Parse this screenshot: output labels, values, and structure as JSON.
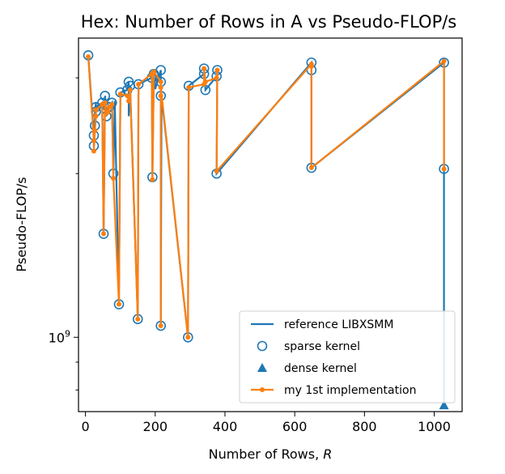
{
  "chart_data": {
    "type": "line",
    "title": "Hex: Number of Rows in A vs Pseudo-FLOP/s",
    "xlabel": "Number of Rows, ",
    "xlabel_var": "R",
    "ylabel": "Pseudo-FLOP/s",
    "y_scale": "log",
    "xlim": [
      -20,
      1080
    ],
    "ylim": [
      730000000,
      3550000000
    ],
    "x_ticks": [
      0,
      200,
      400,
      600,
      800,
      1000
    ],
    "y_tick_label": {
      "base": "10",
      "exp": "9",
      "value": 1000000000
    },
    "grid": false,
    "legend_position": "lower-right",
    "colors": {
      "reference": "#1f77b4",
      "implementation": "#ff7f0e"
    },
    "series": [
      {
        "name": "reference LIBXSMM",
        "kind": "line",
        "x": [
          8,
          24,
          24,
          27,
          27,
          30,
          30,
          48,
          52,
          56,
          60,
          64,
          68,
          76,
          80,
          84,
          96,
          100,
          120,
          124,
          124,
          128,
          150,
          152,
          190,
          192,
          196,
          200,
          216,
          216,
          216,
          216,
          218,
          294,
          296,
          340,
          340,
          344,
          376,
          378,
          376,
          648,
          648,
          648,
          1028,
          1028,
          1028
        ],
        "y": [
          3300000000,
          2350000000,
          2250000000,
          2450000000,
          2600000000,
          2700000000,
          2650000000,
          2700000000,
          1550000000,
          2780000000,
          2550000000,
          2650000000,
          2650000000,
          2700000000,
          2000000000,
          2720000000,
          1150000000,
          2820000000,
          2850000000,
          2950000000,
          2550000000,
          2900000000,
          1080000000,
          2920000000,
          3000000000,
          1970000000,
          3050000000,
          2860000000,
          3100000000,
          2950000000,
          2900000000,
          1050000000,
          2780000000,
          1000000000,
          2900000000,
          3050000000,
          3120000000,
          2850000000,
          3020000000,
          3100000000,
          2000000000,
          3200000000,
          3100000000,
          2050000000,
          3200000000,
          2040000000,
          750000000
        ]
      },
      {
        "name": "sparse kernel",
        "kind": "marker-open-circle",
        "x": [
          8,
          24,
          24,
          27,
          30,
          30,
          48,
          52,
          56,
          60,
          64,
          68,
          76,
          80,
          96,
          100,
          120,
          124,
          128,
          150,
          152,
          190,
          192,
          196,
          216,
          216,
          216,
          216,
          294,
          296,
          340,
          340,
          344,
          376,
          378,
          376,
          648,
          648,
          648,
          1028,
          1028
        ],
        "y": [
          3300000000,
          2350000000,
          2250000000,
          2450000000,
          2600000000,
          2650000000,
          2700000000,
          1550000000,
          2780000000,
          2550000000,
          2650000000,
          2650000000,
          2700000000,
          2000000000,
          1150000000,
          2820000000,
          2850000000,
          2950000000,
          2900000000,
          1080000000,
          2920000000,
          3000000000,
          1970000000,
          3050000000,
          3100000000,
          2950000000,
          1050000000,
          2780000000,
          1000000000,
          2900000000,
          3050000000,
          3120000000,
          2850000000,
          3020000000,
          3100000000,
          2000000000,
          3200000000,
          3100000000,
          2050000000,
          3200000000,
          2040000000
        ]
      },
      {
        "name": "dense kernel",
        "kind": "marker-filled-triangle",
        "x": [
          1028
        ],
        "y": [
          750000000
        ]
      },
      {
        "name": "my 1st implementation",
        "kind": "line-with-dots",
        "x": [
          8,
          24,
          24,
          27,
          30,
          30,
          48,
          52,
          56,
          60,
          64,
          68,
          76,
          80,
          96,
          100,
          120,
          124,
          128,
          150,
          152,
          190,
          192,
          196,
          216,
          216,
          216,
          216,
          294,
          296,
          340,
          340,
          344,
          376,
          378,
          376,
          648,
          648,
          648,
          1028,
          1028
        ],
        "y": [
          3280000000,
          2300000000,
          2200000000,
          2400000000,
          2550000000,
          2620000000,
          2680000000,
          1550000000,
          2700000000,
          2580000000,
          2600000000,
          2650000000,
          2680000000,
          1960000000,
          1150000000,
          2800000000,
          2780000000,
          2720000000,
          2850000000,
          1080000000,
          2920000000,
          3050000000,
          1950000000,
          3080000000,
          2950000000,
          2780000000,
          1050000000,
          2880000000,
          1000000000,
          2880000000,
          2920000000,
          3120000000,
          2950000000,
          3000000000,
          3100000000,
          2020000000,
          3180000000,
          3150000000,
          2050000000,
          3220000000,
          2040000000
        ]
      }
    ]
  }
}
